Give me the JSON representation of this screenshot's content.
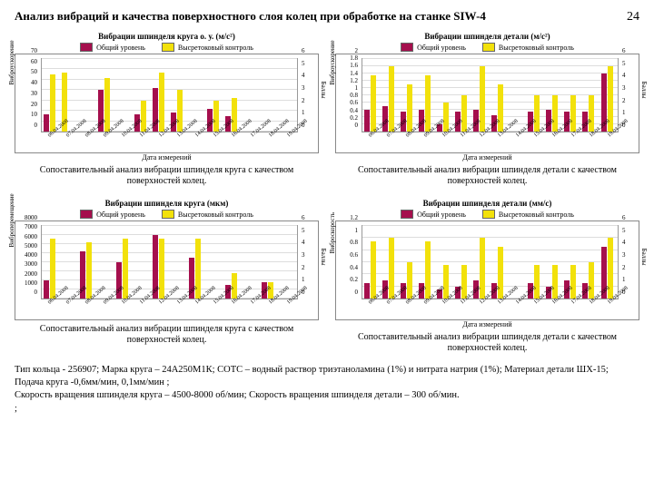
{
  "header": {
    "title": "Анализ вибраций и качества поверхностного слоя колец при обработке на станке SIW-4",
    "page": "24"
  },
  "colors": {
    "s1": "#a50f4d",
    "s2": "#f2e10b",
    "border": "#888",
    "grid": "#dddddd",
    "bg": "#ffffff"
  },
  "legend": {
    "s1": "Общий уровень",
    "s2": "Высретоковый контроль"
  },
  "dates": [
    "06.04.2008",
    "07.04.2008",
    "08.04.2008",
    "09.04.2008",
    "10.04.2008",
    "11.04.2008",
    "12.04.2008",
    "13.04.2008",
    "14.04.2008",
    "15.04.2008",
    "16.04.2008",
    "17.04.2008",
    "18.04.2008",
    "19.04.2008"
  ],
  "charts": [
    {
      "title": "Вибрации шпинделя круга о. у. (м/с²)",
      "x_caption": "Дата измерений",
      "y1_label": "Виброускорение",
      "y2_label": "Баллы",
      "y1_max": 70,
      "y1_step": 10,
      "y2_max": 6,
      "y2_step": 1,
      "s1": [
        17,
        null,
        null,
        40,
        null,
        17,
        42,
        18,
        null,
        22,
        15,
        null,
        null,
        null
      ],
      "s2": [
        55,
        57,
        null,
        52,
        null,
        30,
        57,
        40,
        null,
        30,
        32,
        null,
        null,
        null
      ],
      "caption": "Сопоставительный анализ вибрации шпинделя круга с качеством поверхностей колец."
    },
    {
      "title": "Вибрации шпинделя детали (м/с²)",
      "x_caption": "Дата измерений",
      "y1_label": "Виброускорение",
      "y2_label": "Баллы",
      "y1_max": 2,
      "y1_step": 0.2,
      "y2_max": 6,
      "y2_step": 1,
      "s1": [
        0.6,
        0.7,
        0.55,
        0.6,
        0.2,
        0.55,
        0.6,
        0.45,
        null,
        0.55,
        0.6,
        0.55,
        0.55,
        1.6
      ],
      "s2": [
        1.55,
        1.8,
        1.3,
        1.55,
        0.8,
        1.0,
        1.8,
        1.3,
        null,
        1.0,
        1.0,
        1.0,
        1.0,
        1.8
      ],
      "caption": "Сопоставительный анализ вибрации шпинделя детали с качеством поверхностей колец."
    },
    {
      "title": "Вибрации шпинделя круга (мкм)",
      "x_caption": "",
      "y1_label": "Виброперемещение",
      "y2_label": "Баллы",
      "y1_max": 8000,
      "y1_step": 1000,
      "y2_max": 6,
      "y2_step": 1,
      "s1": [
        2000,
        null,
        5200,
        null,
        4000,
        null,
        7000,
        null,
        4500,
        null,
        1500,
        null,
        1800,
        null
      ],
      "s2": [
        6600,
        null,
        6200,
        null,
        6600,
        null,
        6600,
        null,
        6600,
        null,
        2800,
        null,
        1800,
        null
      ],
      "caption": "Сопоставительный анализ вибрации шпинделя круга с качеством поверхностей колец."
    },
    {
      "title": "Вибрации шпинделя детали (мм/с)",
      "x_caption": "Дата измерений",
      "y1_label": "Виброскорость",
      "y2_label": "Баллы",
      "y1_max": 1.2,
      "y1_step": 0.2,
      "y2_max": 6,
      "y2_step": 1,
      "s1": [
        0.25,
        0.3,
        0.25,
        0.25,
        0.15,
        0.2,
        0.3,
        0.25,
        null,
        0.25,
        0.2,
        0.3,
        0.25,
        0.85
      ],
      "s2": [
        0.95,
        1.0,
        0.6,
        0.95,
        0.55,
        0.55,
        1.0,
        0.85,
        null,
        0.55,
        0.55,
        0.55,
        0.6,
        1.0
      ],
      "caption": "Сопоставительный анализ вибрации шпинделя детали с качеством поверхностей колец."
    }
  ],
  "footer": {
    "line1": "Тип кольца - 256907;  Марка круга – 24А250М1К;  СОТС – водный раствор триэтаноламина (1%) и нитрата натрия (1%);  Материал детали ШХ-15;  Подача круга -0,6мм/мин, 0,1мм/мин ;",
    "line2": "Скорость вращения шпинделя круга – 4500-8000 об/мин;  Скорость вращения шпинделя детали – 300 об/мин.",
    "line3": ";"
  }
}
